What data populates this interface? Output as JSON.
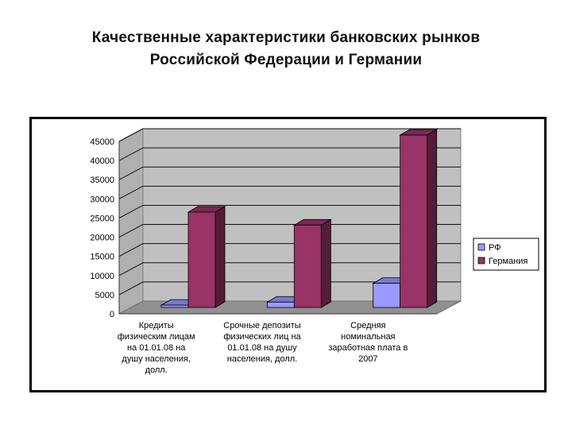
{
  "slide": {
    "title_line1": "Качественные характеристики банковских рынков",
    "title_line2": "Российской Федерации и Германии"
  },
  "chart_data": {
    "type": "bar",
    "title": "",
    "xlabel": "",
    "ylabel": "",
    "ylim": [
      0,
      45000
    ],
    "yticks": [
      0,
      5000,
      10000,
      15000,
      20000,
      25000,
      30000,
      35000,
      40000,
      45000
    ],
    "grid": true,
    "legend_position": "right",
    "categories": [
      [
        "Кредиты",
        "физическим лицам",
        "на 01.01.08 на",
        "душу населения,",
        "долл."
      ],
      [
        "Срочные депозиты",
        "физических лиц на",
        "01.01.08 на душу",
        "населения, долл."
      ],
      [
        "Средняя",
        "номинальная",
        "заработная плата в",
        "2007"
      ]
    ],
    "series": [
      {
        "name": "РФ",
        "color": "#9999ff",
        "values": [
          600,
          1400,
          6300
        ]
      },
      {
        "name": "Германия",
        "color": "#993366",
        "values": [
          24900,
          21500,
          45000
        ]
      }
    ]
  }
}
